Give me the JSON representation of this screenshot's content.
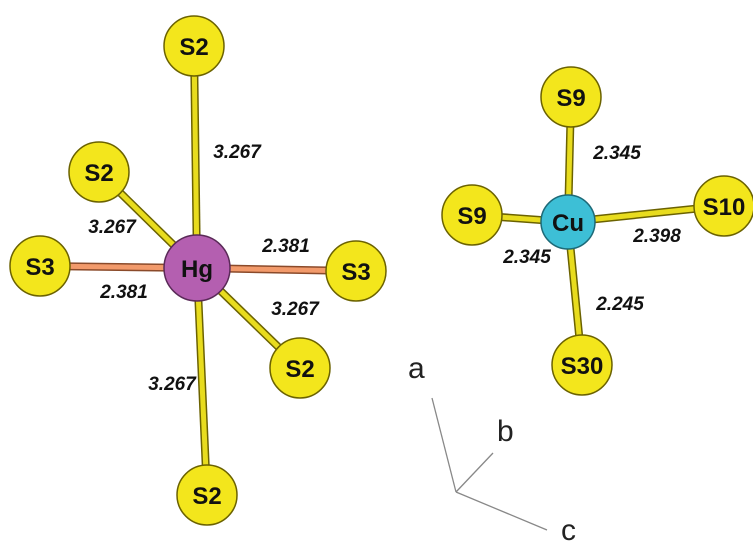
{
  "colors": {
    "sulfur": "#f3e61c",
    "sulfur_stroke": "#6b6200",
    "mercury": "#b45fb0",
    "copper": "#3dbfd6",
    "bond_yellow": "#e8dc1e",
    "bond_orange": "#f29a6b",
    "axis_line": "#888888"
  },
  "hg_complex": {
    "center": "Hg",
    "atoms": {
      "s2_top": "S2",
      "s2_upper_left": "S2",
      "s3_left": "S3",
      "s3_right": "S3",
      "s2_lower_right": "S2",
      "s2_bottom": "S2"
    },
    "distances": {
      "top": "3.267",
      "upper_left": "3.267",
      "left": "2.381",
      "right": "2.381",
      "lower_right": "3.267",
      "bottom": "3.267"
    }
  },
  "cu_complex": {
    "center": "Cu",
    "atoms": {
      "s9_top": "S9",
      "s9_left": "S9",
      "s10_right": "S10",
      "s30_bottom": "S30"
    },
    "distances": {
      "top": "2.345",
      "left": "2.345",
      "right": "2.398",
      "bottom": "2.245"
    }
  },
  "axes": {
    "a": "a",
    "b": "b",
    "c": "c"
  }
}
